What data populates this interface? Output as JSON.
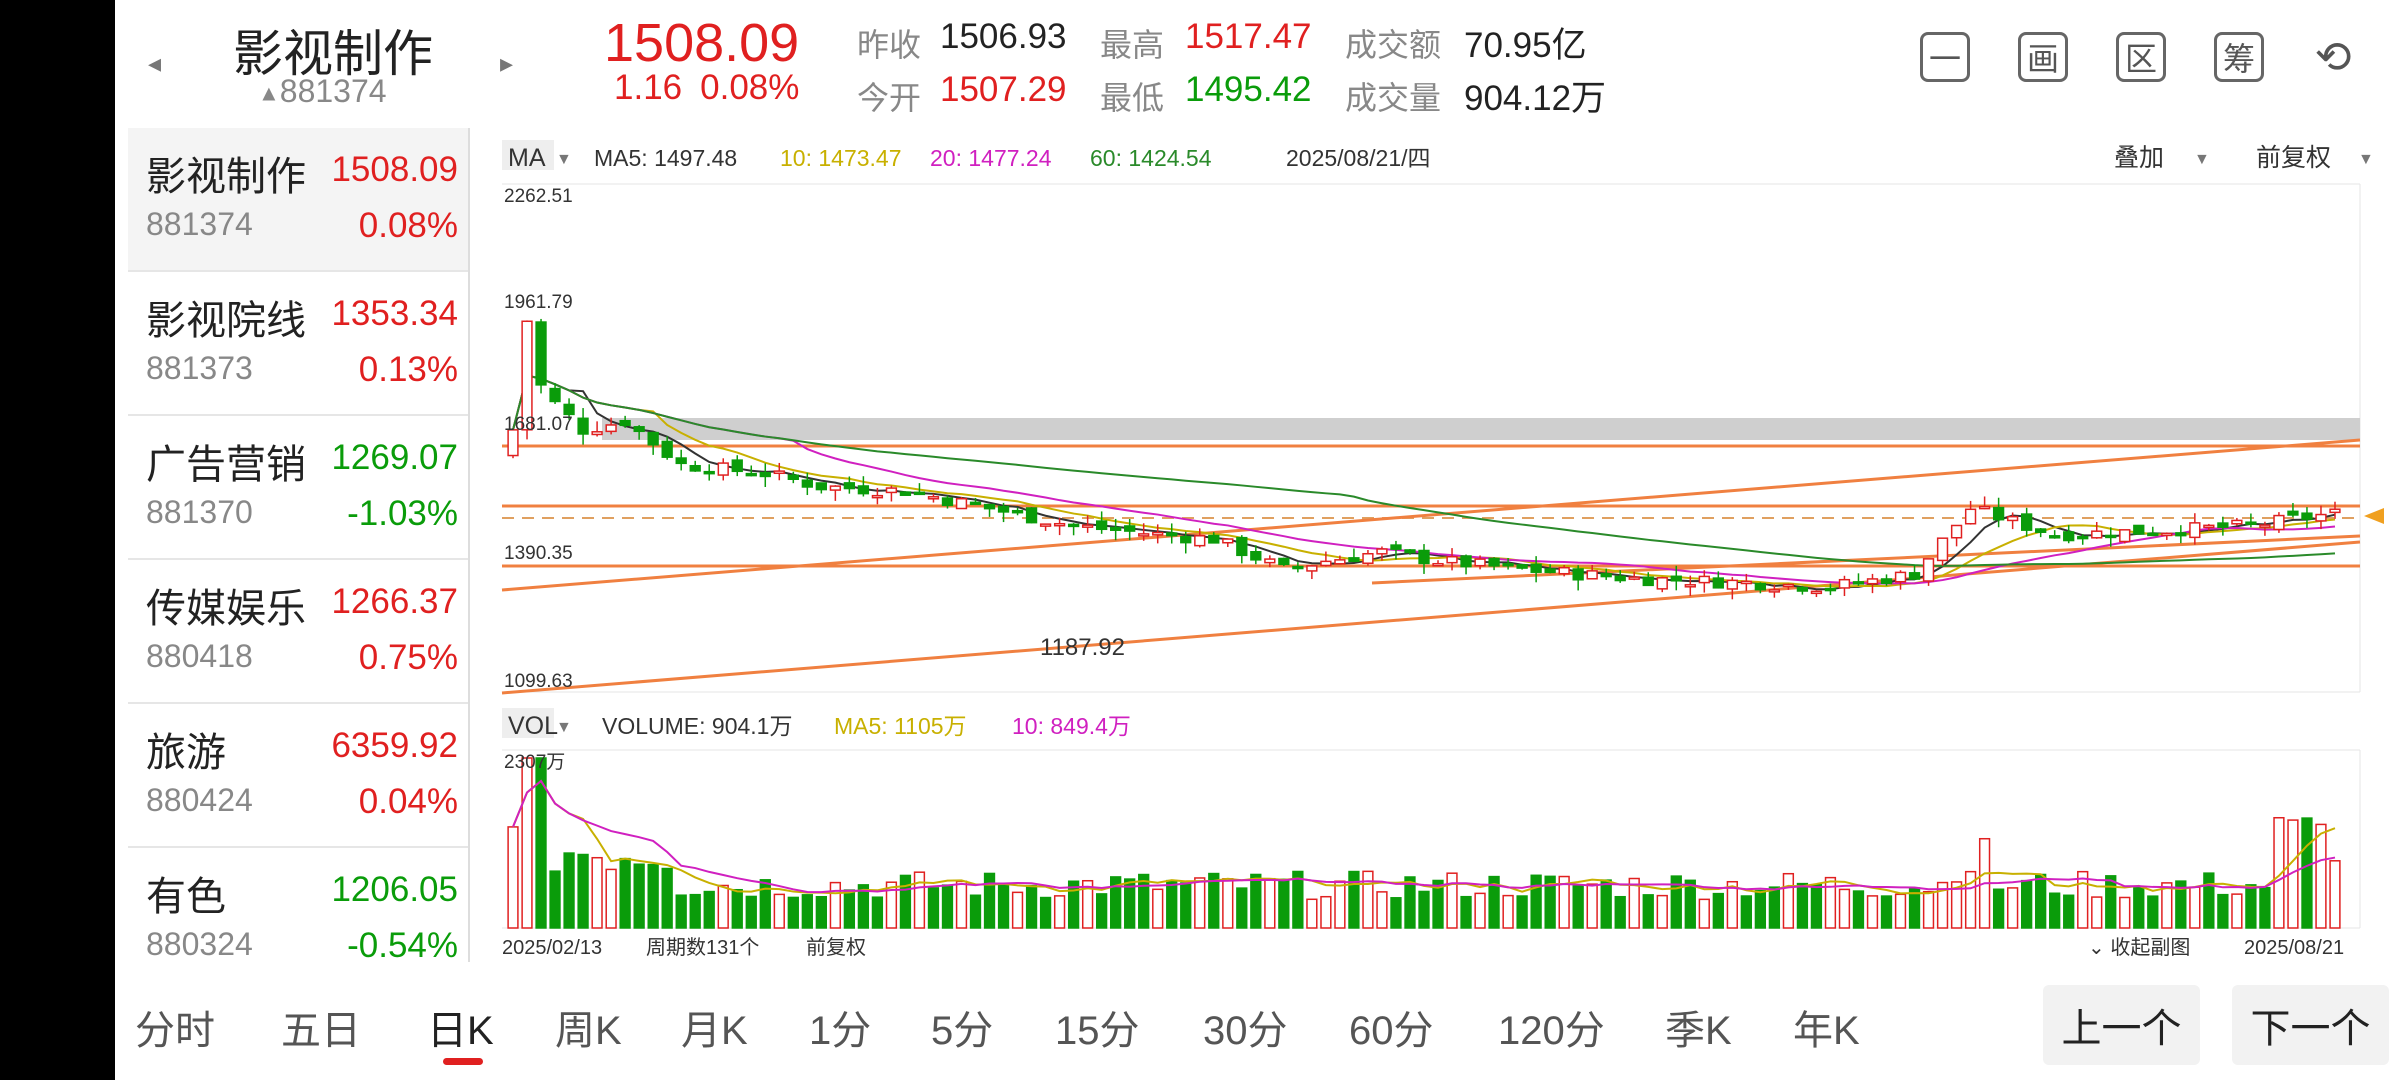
{
  "header": {
    "title": "影视制作",
    "code": "881374",
    "price": "1508.09",
    "change": "1.16",
    "change_pct": "0.08%",
    "stats": {
      "prev_close_label": "昨收",
      "prev_close": "1506.93",
      "open_label": "今开",
      "open": "1507.29",
      "high_label": "最高",
      "high": "1517.47",
      "low_label": "最低",
      "low": "1495.42",
      "amount_label": "成交额",
      "amount": "70.95亿",
      "volume_label": "成交量",
      "volume": "904.12万"
    },
    "buttons": [
      {
        "icon": "minus-box-icon",
        "glyph": "一"
      },
      {
        "icon": "draw-icon",
        "glyph": "画"
      },
      {
        "icon": "zone-icon",
        "glyph": "区"
      },
      {
        "icon": "chip-icon",
        "glyph": "筹"
      },
      {
        "icon": "rotate-screen-icon",
        "glyph": "⟲"
      }
    ]
  },
  "list": [
    {
      "name": "影视制作",
      "price": "1508.09",
      "code": "881374",
      "pct": "0.08%",
      "dir": "up"
    },
    {
      "name": "影视院线",
      "price": "1353.34",
      "code": "881373",
      "pct": "0.13%",
      "dir": "up"
    },
    {
      "name": "广告营销",
      "price": "1269.07",
      "code": "881370",
      "pct": "-1.03%",
      "dir": "down"
    },
    {
      "name": "传媒娱乐",
      "price": "1266.37",
      "code": "880418",
      "pct": "0.75%",
      "dir": "up"
    },
    {
      "name": "旅游",
      "price": "6359.92",
      "code": "880424",
      "pct": "0.04%",
      "dir": "up"
    },
    {
      "name": "有色",
      "price": "1206.05",
      "code": "880324",
      "pct": "-0.54%",
      "dir": "down"
    }
  ],
  "chart": {
    "ma_label": "MA",
    "ma5": "MA5: 1497.48",
    "ma10": "10: 1473.47",
    "ma20": "20: 1477.24",
    "ma60": "60: 1424.54",
    "date": "2025/08/21/四",
    "overlay_label": "叠加",
    "adjust_label": "前复权",
    "price_labels": [
      "2262.51",
      "1961.79",
      "1681.07",
      "1390.35",
      "1099.63"
    ],
    "low_marker": "1187.92",
    "vol_label": "VOL",
    "vol_text": "VOLUME: 904.1万",
    "vol_ma5": "MA5: 1105万",
    "vol_ma10": "10: 849.4万",
    "vol_max": "2307万",
    "start_date": "2025/02/13",
    "period_count": "周期数131个",
    "footer_adjust": "前复权",
    "collapse_label": "收起副图",
    "end_date": "2025/08/21",
    "colors": {
      "up": "#e02020",
      "down": "#0a9c0a",
      "ma5": "#333333",
      "ma10": "#c8b000",
      "ma20": "#d020c0",
      "ma60": "#2a8a2a",
      "trend": "#f08040"
    }
  },
  "chart_data": {
    "type": "candlestick",
    "title": "影视制作",
    "ylabel": "",
    "ylim": [
      1099.63,
      2262.51
    ],
    "x_range": [
      "2025/02/13",
      "2025/08/21"
    ],
    "periods": 131,
    "last_bar": {
      "open": 1507.29,
      "high": 1517.47,
      "low": 1495.42,
      "close": 1508.09
    },
    "lowest": 1187.92,
    "moving_averages": {
      "MA5": 1497.48,
      "MA10": 1473.47,
      "MA20": 1477.24,
      "MA60": 1424.54
    },
    "volume": {
      "last": "904.1万",
      "MA5": "1105万",
      "MA10": "849.4万",
      "max": "2307万"
    }
  },
  "tabs": [
    "分时",
    "五日",
    "日K",
    "周K",
    "月K",
    "1分",
    "5分",
    "15分",
    "30分",
    "60分",
    "120分",
    "季K",
    "年K"
  ],
  "active_tab": "日K",
  "pager": {
    "prev": "上一个",
    "next": "下一个"
  }
}
